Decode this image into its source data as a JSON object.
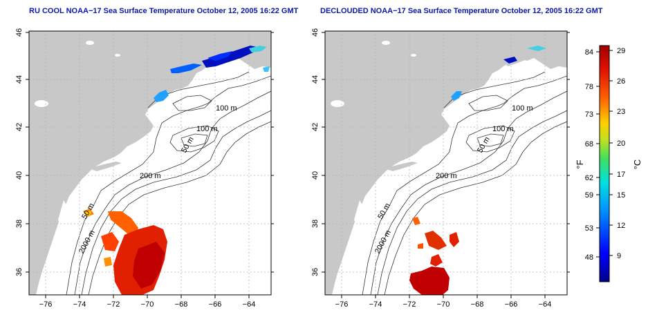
{
  "maps": [
    {
      "title": "RU COOL NOAA−17 Sea Surface Temperature October 12, 2005 16:22 GMT",
      "x_ticks": [
        "−76",
        "−74",
        "−72",
        "−70",
        "−68",
        "−66",
        "−64"
      ],
      "y_ticks": [
        "36",
        "38",
        "40",
        "42",
        "44",
        "46"
      ],
      "contour_labels": [
        "100 m",
        "100 m",
        "50 m",
        "200 m",
        "50 m",
        "2000 m"
      ]
    },
    {
      "title": "DECLOUDED NOAA−17 Sea Surface Temperature October 12, 2005 16:22 GMT",
      "x_ticks": [
        "−76",
        "−74",
        "−72",
        "−70",
        "−68",
        "−66",
        "−64"
      ],
      "y_ticks": [
        "36",
        "38",
        "40",
        "42",
        "44",
        "46"
      ],
      "contour_labels": [
        "100 m",
        "100 m",
        "50 m",
        "200 m",
        "50 m",
        "2000 m"
      ]
    }
  ],
  "colorbar": {
    "fahrenheit_label": "°F",
    "celsius_label": "°C",
    "fahrenheit_ticks": [
      "84",
      "78",
      "73",
      "68",
      "62",
      "59",
      "53",
      "48"
    ],
    "celsius_ticks": [
      "29",
      "26",
      "23",
      "20",
      "17",
      "15",
      "12",
      "9"
    ]
  },
  "colors": {
    "title": "#0b18a8",
    "land": "#c8c8c8",
    "ocean": "#ffffff",
    "cold": "#00008c",
    "warm": "#a00000"
  }
}
